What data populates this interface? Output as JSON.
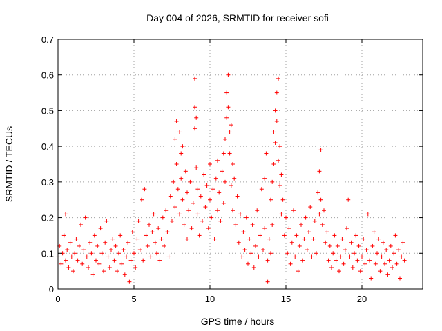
{
  "chart_data": {
    "type": "scatter",
    "title": "Day 004 of 2026, SRMTID for receiver sofi",
    "xlabel": "GPS time / hours",
    "ylabel": "SRMTID / TECUs",
    "xlim": [
      0,
      24
    ],
    "ylim": [
      0,
      0.7
    ],
    "x_ticks": [
      0,
      5,
      10,
      15,
      20
    ],
    "x_tick_labels": [
      "0",
      "5",
      "10",
      "15",
      "20"
    ],
    "y_ticks": [
      0,
      0.1,
      0.2,
      0.3,
      0.4,
      0.5,
      0.6,
      0.7
    ],
    "y_tick_labels": [
      "0",
      "0.1",
      "0.2",
      "0.3",
      "0.4",
      "0.5",
      "0.6",
      "0.7"
    ],
    "grid": true,
    "marker": "+",
    "color": "#ff0000",
    "series": [
      {
        "name": "SRMTID",
        "points": [
          [
            0.0,
            0.09
          ],
          [
            0.1,
            0.12
          ],
          [
            0.2,
            0.07
          ],
          [
            0.3,
            0.1
          ],
          [
            0.4,
            0.15
          ],
          [
            0.5,
            0.08
          ],
          [
            0.5,
            0.21
          ],
          [
            0.6,
            0.11
          ],
          [
            0.7,
            0.06
          ],
          [
            0.8,
            0.13
          ],
          [
            0.9,
            0.09
          ],
          [
            1.0,
            0.05
          ],
          [
            1.1,
            0.1
          ],
          [
            1.2,
            0.14
          ],
          [
            1.3,
            0.08
          ],
          [
            1.4,
            0.12
          ],
          [
            1.5,
            0.18
          ],
          [
            1.6,
            0.07
          ],
          [
            1.7,
            0.11
          ],
          [
            1.8,
            0.2
          ],
          [
            1.9,
            0.09
          ],
          [
            2.0,
            0.06
          ],
          [
            2.1,
            0.13
          ],
          [
            2.2,
            0.1
          ],
          [
            2.3,
            0.04
          ],
          [
            2.4,
            0.15
          ],
          [
            2.5,
            0.08
          ],
          [
            2.6,
            0.12
          ],
          [
            2.7,
            0.07
          ],
          [
            2.8,
            0.17
          ],
          [
            2.9,
            0.1
          ],
          [
            3.0,
            0.05
          ],
          [
            3.1,
            0.13
          ],
          [
            3.2,
            0.19
          ],
          [
            3.3,
            0.09
          ],
          [
            3.4,
            0.06
          ],
          [
            3.5,
            0.11
          ],
          [
            3.6,
            0.14
          ],
          [
            3.7,
            0.08
          ],
          [
            3.8,
            0.12
          ],
          [
            3.9,
            0.05
          ],
          [
            4.0,
            0.1
          ],
          [
            4.1,
            0.15
          ],
          [
            4.2,
            0.07
          ],
          [
            4.3,
            0.11
          ],
          [
            4.4,
            0.04
          ],
          [
            4.5,
            0.09
          ],
          [
            4.6,
            0.13
          ],
          [
            4.7,
            0.02
          ],
          [
            4.8,
            0.08
          ],
          [
            4.9,
            0.16
          ],
          [
            5.0,
            0.1
          ],
          [
            5.1,
            0.06
          ],
          [
            5.2,
            0.14
          ],
          [
            5.3,
            0.19
          ],
          [
            5.4,
            0.11
          ],
          [
            5.5,
            0.25
          ],
          [
            5.6,
            0.08
          ],
          [
            5.7,
            0.28
          ],
          [
            5.8,
            0.15
          ],
          [
            5.9,
            0.12
          ],
          [
            6.0,
            0.18
          ],
          [
            6.1,
            0.09
          ],
          [
            6.2,
            0.16
          ],
          [
            6.3,
            0.21
          ],
          [
            6.4,
            0.13
          ],
          [
            6.5,
            0.1
          ],
          [
            6.6,
            0.17
          ],
          [
            6.7,
            0.08
          ],
          [
            6.8,
            0.14
          ],
          [
            6.9,
            0.2
          ],
          [
            7.0,
            0.12
          ],
          [
            7.1,
            0.22
          ],
          [
            7.2,
            0.16
          ],
          [
            7.3,
            0.09
          ],
          [
            7.4,
            0.26
          ],
          [
            7.5,
            0.19
          ],
          [
            7.6,
            0.3
          ],
          [
            7.7,
            0.23
          ],
          [
            7.7,
            0.42
          ],
          [
            7.8,
            0.35
          ],
          [
            7.8,
            0.47
          ],
          [
            7.9,
            0.28
          ],
          [
            8.0,
            0.21
          ],
          [
            8.0,
            0.44
          ],
          [
            8.1,
            0.38
          ],
          [
            8.1,
            0.31
          ],
          [
            8.2,
            0.25
          ],
          [
            8.2,
            0.4
          ],
          [
            8.3,
            0.18
          ],
          [
            8.4,
            0.33
          ],
          [
            8.5,
            0.27
          ],
          [
            8.5,
            0.14
          ],
          [
            8.6,
            0.22
          ],
          [
            8.7,
            0.3
          ],
          [
            8.8,
            0.17
          ],
          [
            8.9,
            0.24
          ],
          [
            9.0,
            0.51
          ],
          [
            9.0,
            0.59
          ],
          [
            9.0,
            0.45
          ],
          [
            9.1,
            0.48
          ],
          [
            9.1,
            0.34
          ],
          [
            9.2,
            0.21
          ],
          [
            9.2,
            0.28
          ],
          [
            9.3,
            0.15
          ],
          [
            9.4,
            0.26
          ],
          [
            9.5,
            0.19
          ],
          [
            9.6,
            0.32
          ],
          [
            9.7,
            0.23
          ],
          [
            9.8,
            0.29
          ],
          [
            9.9,
            0.17
          ],
          [
            10.0,
            0.25
          ],
          [
            10.0,
            0.35
          ],
          [
            10.1,
            0.2
          ],
          [
            10.2,
            0.28
          ],
          [
            10.3,
            0.14
          ],
          [
            10.4,
            0.31
          ],
          [
            10.5,
            0.22
          ],
          [
            10.5,
            0.36
          ],
          [
            10.6,
            0.27
          ],
          [
            10.7,
            0.19
          ],
          [
            10.8,
            0.33
          ],
          [
            10.9,
            0.24
          ],
          [
            10.9,
            0.38
          ],
          [
            11.0,
            0.3
          ],
          [
            11.0,
            0.42
          ],
          [
            11.1,
            0.55
          ],
          [
            11.1,
            0.48
          ],
          [
            11.2,
            0.6
          ],
          [
            11.2,
            0.51
          ],
          [
            11.3,
            0.44
          ],
          [
            11.3,
            0.38
          ],
          [
            11.4,
            0.46
          ],
          [
            11.4,
            0.29
          ],
          [
            11.5,
            0.35
          ],
          [
            11.5,
            0.22
          ],
          [
            11.6,
            0.31
          ],
          [
            11.7,
            0.18
          ],
          [
            11.8,
            0.26
          ],
          [
            11.9,
            0.13
          ],
          [
            12.0,
            0.21
          ],
          [
            12.1,
            0.09
          ],
          [
            12.2,
            0.16
          ],
          [
            12.3,
            0.11
          ],
          [
            12.4,
            0.2
          ],
          [
            12.5,
            0.07
          ],
          [
            12.6,
            0.14
          ],
          [
            12.7,
            0.1
          ],
          [
            12.8,
            0.18
          ],
          [
            12.9,
            0.06
          ],
          [
            13.0,
            0.12
          ],
          [
            13.1,
            0.22
          ],
          [
            13.2,
            0.09
          ],
          [
            13.3,
            0.15
          ],
          [
            13.4,
            0.28
          ],
          [
            13.5,
            0.11
          ],
          [
            13.6,
            0.31
          ],
          [
            13.6,
            0.17
          ],
          [
            13.7,
            0.38
          ],
          [
            13.8,
            0.08
          ],
          [
            13.8,
            0.02
          ],
          [
            13.9,
            0.14
          ],
          [
            14.0,
            0.1
          ],
          [
            14.0,
            0.25
          ],
          [
            14.1,
            0.18
          ],
          [
            14.1,
            0.3
          ],
          [
            14.2,
            0.35
          ],
          [
            14.2,
            0.44
          ],
          [
            14.3,
            0.5
          ],
          [
            14.3,
            0.41
          ],
          [
            14.4,
            0.55
          ],
          [
            14.4,
            0.47
          ],
          [
            14.5,
            0.59
          ],
          [
            14.5,
            0.36
          ],
          [
            14.6,
            0.4
          ],
          [
            14.6,
            0.29
          ],
          [
            14.7,
            0.32
          ],
          [
            14.7,
            0.21
          ],
          [
            14.8,
            0.25
          ],
          [
            14.9,
            0.15
          ],
          [
            15.0,
            0.2
          ],
          [
            15.1,
            0.1
          ],
          [
            15.2,
            0.17
          ],
          [
            15.3,
            0.07
          ],
          [
            15.4,
            0.13
          ],
          [
            15.5,
            0.22
          ],
          [
            15.6,
            0.09
          ],
          [
            15.7,
            0.15
          ],
          [
            15.8,
            0.05
          ],
          [
            15.9,
            0.12
          ],
          [
            16.0,
            0.18
          ],
          [
            16.1,
            0.08
          ],
          [
            16.2,
            0.14
          ],
          [
            16.3,
            0.2
          ],
          [
            16.4,
            0.11
          ],
          [
            16.5,
            0.16
          ],
          [
            16.6,
            0.23
          ],
          [
            16.7,
            0.09
          ],
          [
            16.8,
            0.14
          ],
          [
            16.9,
            0.19
          ],
          [
            17.0,
            0.1
          ],
          [
            17.1,
            0.27
          ],
          [
            17.2,
            0.21
          ],
          [
            17.2,
            0.33
          ],
          [
            17.3,
            0.39
          ],
          [
            17.3,
            0.25
          ],
          [
            17.4,
            0.18
          ],
          [
            17.5,
            0.22
          ],
          [
            17.6,
            0.13
          ],
          [
            17.7,
            0.16
          ],
          [
            17.8,
            0.08
          ],
          [
            17.9,
            0.12
          ],
          [
            18.0,
            0.06
          ],
          [
            18.1,
            0.1
          ],
          [
            18.2,
            0.15
          ],
          [
            18.3,
            0.08
          ],
          [
            18.4,
            0.12
          ],
          [
            18.5,
            0.05
          ],
          [
            18.6,
            0.09
          ],
          [
            18.7,
            0.14
          ],
          [
            18.8,
            0.07
          ],
          [
            18.9,
            0.11
          ],
          [
            19.0,
            0.17
          ],
          [
            19.1,
            0.25
          ],
          [
            19.2,
            0.09
          ],
          [
            19.3,
            0.13
          ],
          [
            19.4,
            0.06
          ],
          [
            19.5,
            0.1
          ],
          [
            19.6,
            0.15
          ],
          [
            19.7,
            0.08
          ],
          [
            19.8,
            0.12
          ],
          [
            19.9,
            0.05
          ],
          [
            20.0,
            0.09
          ],
          [
            20.1,
            0.14
          ],
          [
            20.2,
            0.07
          ],
          [
            20.3,
            0.11
          ],
          [
            20.4,
            0.21
          ],
          [
            20.5,
            0.08
          ],
          [
            20.6,
            0.03
          ],
          [
            20.7,
            0.12
          ],
          [
            20.8,
            0.16
          ],
          [
            20.9,
            0.07
          ],
          [
            21.0,
            0.1
          ],
          [
            21.1,
            0.14
          ],
          [
            21.2,
            0.05
          ],
          [
            21.3,
            0.09
          ],
          [
            21.4,
            0.13
          ],
          [
            21.5,
            0.07
          ],
          [
            21.6,
            0.11
          ],
          [
            21.7,
            0.04
          ],
          [
            21.8,
            0.08
          ],
          [
            21.9,
            0.12
          ],
          [
            22.0,
            0.06
          ],
          [
            22.1,
            0.1
          ],
          [
            22.2,
            0.15
          ],
          [
            22.3,
            0.07
          ],
          [
            22.4,
            0.11
          ],
          [
            22.5,
            0.03
          ],
          [
            22.6,
            0.09
          ],
          [
            22.7,
            0.13
          ],
          [
            22.8,
            0.08
          ]
        ]
      }
    ]
  }
}
